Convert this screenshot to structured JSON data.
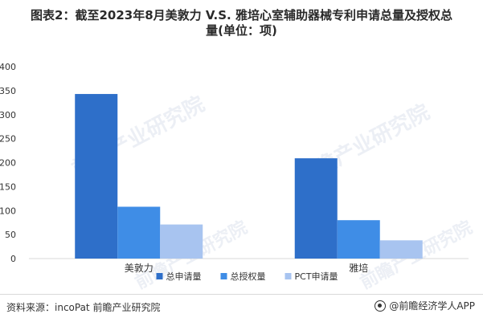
{
  "title": {
    "line1": "图表2：截至2023年8月美敦力 V.S. 雅培心室辅助器械专利申请总量及授权总",
    "line2": "量(单位：项)"
  },
  "watermark": "前瞻产业研究院",
  "source": "资料来源：incoPat 前瞻产业研究院",
  "brand": "@前瞻经济学人APP",
  "colors": {
    "series1": "#2e6fc9",
    "series2": "#3f8de6",
    "series3": "#a8c4f0",
    "axis_text": "#333333",
    "grid": "#d9d9d9"
  },
  "chart_data": {
    "type": "bar",
    "categories": [
      "美敦力",
      "雅培"
    ],
    "series": [
      {
        "name": "总申请量",
        "values": [
          343,
          209
        ]
      },
      {
        "name": "总授权量",
        "values": [
          108,
          80
        ]
      },
      {
        "name": "PCT申请量",
        "values": [
          71,
          38
        ]
      }
    ],
    "ylim": [
      0,
      400
    ],
    "yticks": [
      0,
      50,
      100,
      150,
      200,
      250,
      300,
      350,
      400
    ],
    "legend_position": "bottom",
    "grid": false
  }
}
